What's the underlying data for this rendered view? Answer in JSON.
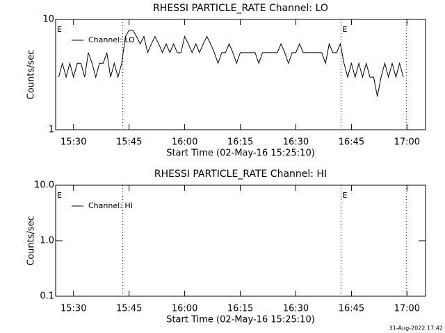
{
  "chart_data": [
    {
      "type": "line",
      "title": "RHESSI PARTICLE_RATE Channel: LO",
      "xlabel": "Start Time (02-May-16 15:25:10)",
      "ylabel": "Counts/sec",
      "xlim": [
        925.17,
        1025
      ],
      "xticks": [
        {
          "value": 930,
          "label": "15:30"
        },
        {
          "value": 945,
          "label": "15:45"
        },
        {
          "value": 960,
          "label": "16:00"
        },
        {
          "value": 975,
          "label": "16:15"
        },
        {
          "value": 990,
          "label": "16:30"
        },
        {
          "value": 1005,
          "label": "16:45"
        },
        {
          "value": 1020,
          "label": "17:00"
        }
      ],
      "ylim": [
        1,
        10
      ],
      "yticks": [
        1,
        10
      ],
      "log_y": true,
      "legend": "upper left",
      "event_lines": [
        {
          "x": 925.2,
          "label": "E"
        },
        {
          "x": 943.3
        },
        {
          "x": 1002.2,
          "label": "E"
        },
        {
          "x": 1019.8
        }
      ],
      "x": [
        926,
        927,
        928,
        929,
        930,
        931,
        932,
        933,
        934,
        935,
        936,
        937,
        938,
        939,
        940,
        941,
        942,
        943,
        944,
        945,
        946,
        947,
        948,
        949,
        950,
        951,
        952,
        953,
        954,
        955,
        956,
        957,
        958,
        959,
        960,
        961,
        962,
        963,
        964,
        965,
        966,
        967,
        968,
        969,
        970,
        971,
        972,
        973,
        974,
        975,
        976,
        977,
        978,
        979,
        980,
        981,
        982,
        983,
        984,
        985,
        986,
        987,
        988,
        989,
        990,
        991,
        992,
        993,
        994,
        995,
        996,
        997,
        998,
        999,
        1000,
        1001,
        1002,
        1003,
        1004,
        1005,
        1006,
        1007,
        1008,
        1009,
        1010,
        1011,
        1012,
        1013,
        1014,
        1015,
        1016,
        1017,
        1018,
        1019
      ],
      "series": [
        {
          "name": "Channel: LO",
          "color": "#000000",
          "values": [
            3,
            4,
            3,
            4,
            3,
            4,
            4,
            3,
            5,
            4,
            3,
            4,
            4,
            5,
            3,
            4,
            3,
            4,
            7,
            8,
            8,
            7,
            6,
            7,
            5,
            6,
            7,
            6,
            5,
            6,
            5,
            6,
            5,
            5,
            7,
            6,
            5,
            6,
            5,
            6,
            7,
            6,
            5,
            4,
            5,
            5,
            6,
            5,
            4,
            5,
            5,
            5,
            5,
            5,
            4,
            5,
            5,
            5,
            5,
            5,
            6,
            5,
            4,
            5,
            5,
            6,
            5,
            5,
            5,
            5,
            5,
            5,
            4,
            6,
            5,
            5,
            6,
            4,
            3,
            4,
            3,
            4,
            3,
            4,
            3,
            3,
            2,
            3,
            4,
            3,
            4,
            3,
            4,
            3
          ]
        }
      ]
    },
    {
      "type": "line",
      "title": "RHESSI PARTICLE_RATE Channel: HI",
      "xlabel": "Start Time (02-May-16 15:25:10)",
      "ylabel": "Counts/sec",
      "xlim": [
        925.17,
        1025
      ],
      "xticks": [
        {
          "value": 930,
          "label": "15:30"
        },
        {
          "value": 945,
          "label": "15:45"
        },
        {
          "value": 960,
          "label": "16:00"
        },
        {
          "value": 975,
          "label": "16:15"
        },
        {
          "value": 990,
          "label": "16:30"
        },
        {
          "value": 1005,
          "label": "16:45"
        },
        {
          "value": 1020,
          "label": "17:00"
        }
      ],
      "ylim": [
        0.1,
        10
      ],
      "yticks": [
        {
          "value": 0.1,
          "label": "0.1"
        },
        {
          "value": 1,
          "label": "1.0"
        },
        {
          "value": 10,
          "label": "10.0"
        }
      ],
      "log_y": true,
      "legend": "upper left",
      "event_lines": [
        {
          "x": 925.2,
          "label": "E"
        },
        {
          "x": 943.3
        },
        {
          "x": 1002.2,
          "label": "E"
        },
        {
          "x": 1019.8
        }
      ],
      "x": [],
      "series": [
        {
          "name": "Channel: HI",
          "color": "#000000",
          "values": []
        }
      ]
    }
  ],
  "footer": "31-Aug-2022 17:42"
}
